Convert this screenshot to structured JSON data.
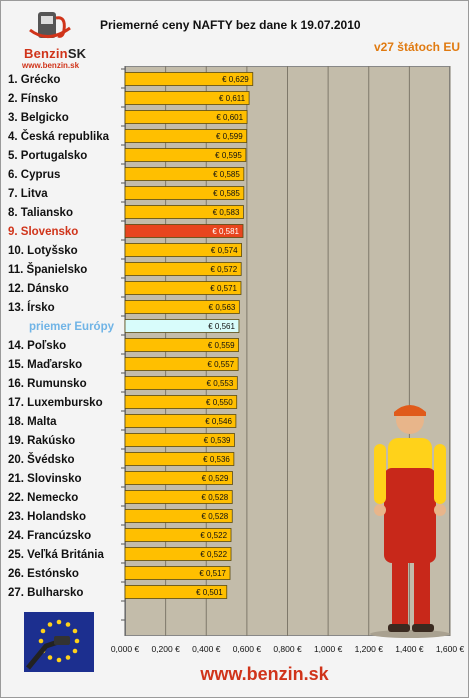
{
  "logo": {
    "brand": "Benzin",
    "brand_suffix": "SK",
    "url": "www.benzin.sk"
  },
  "header": {
    "title": "Priemerné ceny NAFTY bez dane k 19.07.2010",
    "subtitle": "v27 štátoch EU"
  },
  "footer": {
    "url": "www.benzin.sk"
  },
  "colors": {
    "bar": "#ffbf00",
    "highlight": "#e8451e",
    "average": "#d8fcfb",
    "highlight_label": "#d0341a",
    "average_label": "#70b4e6",
    "plot_bg": "#c3bcaa"
  },
  "icons": {
    "logo": "fuel-pump-logo-icon",
    "flag": "eu-flag-fuel-nozzle-icon",
    "mascot": "gas-station-worker-illustration"
  },
  "chart_data": {
    "type": "bar",
    "orientation": "horizontal",
    "title": "Priemerné ceny NAFTY bez dane k 19.07.2010",
    "subtitle": "v27 štátoch EU",
    "categories": [
      "1. Grécko",
      "2. Fínsko",
      "3. Belgicko",
      "4. Česká republika",
      "5. Portugalsko",
      "6. Cyprus",
      "7. Litva",
      "8. Taliansko",
      "9. Slovensko",
      "10. Lotyšsko",
      "11. Španielsko",
      "12. Dánsko",
      "13. Írsko",
      "priemer Európy",
      "14. Poľsko",
      "15. Maďarsko",
      "16. Rumunsko",
      "17. Luxembursko",
      "18. Malta",
      "19. Rakúsko",
      "20. Švédsko",
      "21. Slovinsko",
      "22. Nemecko",
      "23. Holandsko",
      "24. Francúzsko",
      "25. Veľká Británia",
      "26. Estónsko",
      "27. Bulharsko"
    ],
    "values": [
      0.629,
      0.611,
      0.601,
      0.599,
      0.595,
      0.585,
      0.585,
      0.583,
      0.581,
      0.574,
      0.572,
      0.571,
      0.563,
      0.561,
      0.559,
      0.557,
      0.553,
      0.55,
      0.546,
      0.539,
      0.536,
      0.529,
      0.528,
      0.528,
      0.522,
      0.522,
      0.517,
      0.501
    ],
    "data_labels": [
      "€ 0,629",
      "€ 0,611",
      "€ 0,601",
      "€ 0,599",
      "€ 0,595",
      "€ 0,585",
      "€ 0,585",
      "€ 0,583",
      "€ 0,581",
      "€ 0,574",
      "€ 0,572",
      "€ 0,571",
      "€ 0,563",
      "€ 0,561",
      "€ 0,559",
      "€ 0,557",
      "€ 0,553",
      "€ 0,550",
      "€ 0,546",
      "€ 0,539",
      "€ 0,536",
      "€ 0,529",
      "€ 0,528",
      "€ 0,528",
      "€ 0,522",
      "€ 0,522",
      "€ 0,517",
      "€ 0,501"
    ],
    "highlight_index": 8,
    "average_index": 13,
    "xlim": [
      0,
      1.6
    ],
    "x_ticks": [
      0,
      0.2,
      0.4,
      0.6,
      0.8,
      1.0,
      1.2,
      1.4,
      1.6
    ],
    "x_tick_labels": [
      "0,000 €",
      "0,200 €",
      "0,400 €",
      "0,600 €",
      "0,800 €",
      "1,000 €",
      "1,200 €",
      "1,400 €",
      "1,600 €"
    ],
    "grid": "vertical",
    "legend": "none"
  }
}
